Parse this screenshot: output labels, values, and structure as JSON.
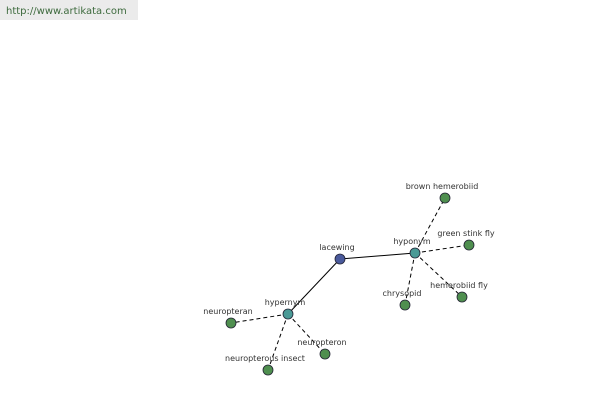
{
  "header": {
    "url": "http://www.artikata.com"
  },
  "nodes": [
    {
      "label": "lacewing"
    },
    {
      "label": "hyponym"
    },
    {
      "label": "hypernym"
    },
    {
      "label": "brown hemerobiid"
    },
    {
      "label": "green stink fly"
    },
    {
      "label": "chrysopid"
    },
    {
      "label": "hemerobiid fly"
    },
    {
      "label": "neuropteran"
    },
    {
      "label": "neuropteron"
    },
    {
      "label": "neuropterous insect"
    }
  ]
}
